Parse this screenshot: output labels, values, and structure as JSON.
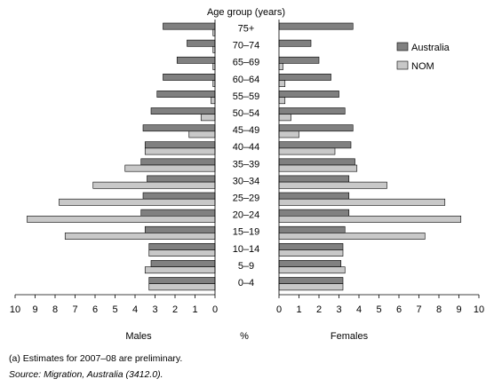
{
  "chart_data": {
    "type": "bar",
    "title": "Age group (years)",
    "xlabel": "%",
    "side_labels": {
      "left": "Males",
      "right": "Females"
    },
    "categories": [
      "75+",
      "70–74",
      "65–69",
      "60–64",
      "55–59",
      "50–54",
      "45–49",
      "40–44",
      "35–39",
      "30–34",
      "25–29",
      "20–24",
      "15–19",
      "10–14",
      "5–9",
      "0–4"
    ],
    "xlim": [
      0,
      10
    ],
    "xticks": [
      "10",
      "9",
      "8",
      "7",
      "6",
      "5",
      "4",
      "3",
      "2",
      "1",
      "0"
    ],
    "xticks_right": [
      "0",
      "1",
      "2",
      "3",
      "4",
      "5",
      "6",
      "7",
      "8",
      "9",
      "10"
    ],
    "series": [
      {
        "name": "Australia",
        "color": "#808080",
        "males": [
          2.6,
          1.4,
          1.9,
          2.6,
          2.9,
          3.2,
          3.6,
          3.5,
          3.7,
          3.4,
          3.6,
          3.7,
          3.5,
          3.3,
          3.2,
          3.3
        ],
        "females": [
          3.7,
          1.6,
          2.0,
          2.6,
          3.0,
          3.3,
          3.7,
          3.6,
          3.8,
          3.5,
          3.5,
          3.5,
          3.3,
          3.2,
          3.1,
          3.2
        ]
      },
      {
        "name": "NOM",
        "color": "#c8c8c8",
        "males": [
          0.1,
          0.1,
          0.1,
          0.1,
          0.2,
          0.7,
          1.3,
          3.5,
          4.5,
          6.1,
          7.8,
          9.4,
          7.5,
          3.3,
          3.5,
          3.3
        ],
        "females": [
          0.0,
          0.0,
          0.2,
          0.3,
          0.3,
          0.6,
          1.0,
          2.8,
          3.9,
          5.4,
          8.3,
          9.1,
          7.3,
          3.2,
          3.3,
          3.2
        ]
      }
    ],
    "legend_position": "top-right"
  },
  "notes": {
    "footnote": "(a) Estimates for 2007–08 are preliminary.",
    "source": "Source: Migration, Australia (3412.0)."
  }
}
